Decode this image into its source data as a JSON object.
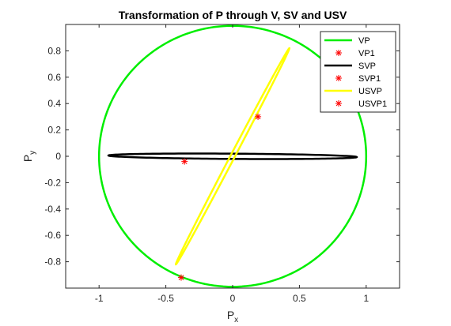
{
  "chart_data": {
    "type": "line",
    "title": "Transformation of P through V, SV and USV",
    "xlabel": {
      "base": "P",
      "sub": "x"
    },
    "ylabel": {
      "base": "P",
      "sub": "y"
    },
    "xlim": [
      -1.25,
      1.25
    ],
    "ylim": [
      -1.0,
      1.0
    ],
    "xticks": [
      -1,
      -0.5,
      0,
      0.5,
      1
    ],
    "xtick_labels": [
      "-1",
      "-0.5",
      "0",
      "0.5",
      "1"
    ],
    "yticks": [
      0.8,
      0.6,
      0.4,
      0.2,
      0,
      -0.2,
      -0.4,
      -0.6,
      -0.8
    ],
    "ytick_labels": [
      "0.8",
      "0.6",
      "0.4",
      "0.2",
      "0",
      "-0.2",
      "-0.4",
      "-0.6",
      "-0.8"
    ],
    "grid": false,
    "legend_position": "top-right",
    "series": [
      {
        "name": "VP",
        "kind": "ellipse",
        "color": "#00ee00",
        "center": [
          0,
          0
        ],
        "axis_u": [
          1.0,
          0.0
        ],
        "axis_v": [
          0.0,
          0.99
        ]
      },
      {
        "name": "SVP",
        "kind": "ellipse",
        "color": "#000000",
        "center": [
          0,
          0
        ],
        "axis_u": [
          0.93,
          -0.006
        ],
        "axis_v": [
          0.0,
          0.02
        ]
      },
      {
        "name": "USVP",
        "kind": "ellipse",
        "color": "#ffff00",
        "center": [
          0,
          0
        ],
        "axis_u": [
          0.425,
          0.82
        ],
        "axis_v": [
          -0.012,
          0.012
        ]
      }
    ],
    "points": [
      {
        "name": "VP1",
        "color": "#ff0000",
        "x": -0.385,
        "y": -0.92
      },
      {
        "name": "SVP1",
        "color": "#ff0000",
        "x": -0.36,
        "y": -0.04
      },
      {
        "name": "USVP1",
        "color": "#ff0000",
        "x": 0.19,
        "y": 0.3
      }
    ],
    "legend": [
      {
        "label": "VP",
        "marker": "line",
        "color": "#00ee00"
      },
      {
        "label": "VP1",
        "marker": "star",
        "color": "#ff0000"
      },
      {
        "label": "SVP",
        "marker": "line",
        "color": "#000000"
      },
      {
        "label": "SVP1",
        "marker": "star",
        "color": "#ff0000"
      },
      {
        "label": "USVP",
        "marker": "line",
        "color": "#ffff00"
      },
      {
        "label": "USVP1",
        "marker": "star",
        "color": "#ff0000"
      }
    ]
  }
}
